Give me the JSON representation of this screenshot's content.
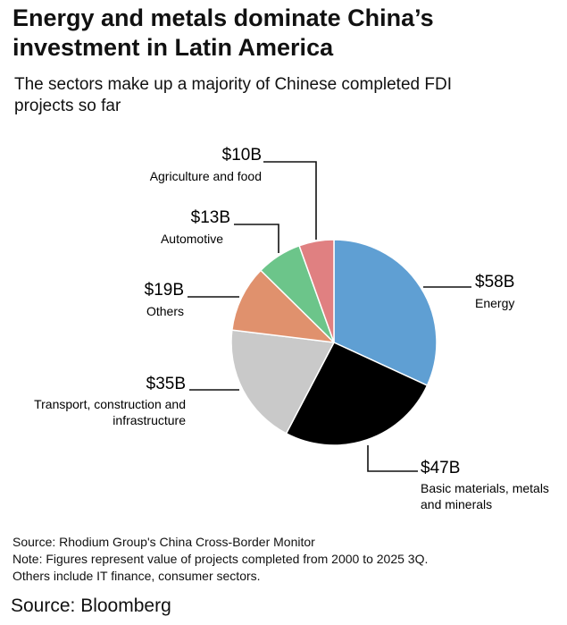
{
  "chart_data": {
    "type": "pie",
    "title": "Energy and metals dominate China’s investment in Latin America",
    "subtitle": "The sectors make up a majority of Chinese completed FDI projects so far",
    "unit": "$B",
    "start": "top",
    "direction": "clockwise",
    "slices": [
      {
        "label": "Energy",
        "value_label": "$58B",
        "value": 58,
        "color": "#5f9fd3"
      },
      {
        "label": "Basic materials, metals and minerals",
        "value_label": "$47B",
        "value": 47,
        "color": "#000000"
      },
      {
        "label": "Transport, construction and infrastructure",
        "value_label": "$35B",
        "value": 35,
        "color": "#c9c9c9"
      },
      {
        "label": "Others",
        "value_label": "$19B",
        "value": 19,
        "color": "#e0916d"
      },
      {
        "label": "Automotive",
        "value_label": "$13B",
        "value": 13,
        "color": "#6cc58a"
      },
      {
        "label": "Agriculture and food",
        "value_label": "$10B",
        "value": 10,
        "color": "#e08081"
      }
    ]
  },
  "notes": {
    "source": "Source: Rhodium Group's China Cross-Border Monitor",
    "note1": "Note: Figures represent value of projects completed from 2000 to 2025 3Q.",
    "note2": "Others include IT finance, consumer sectors."
  },
  "footer": {
    "source": "Source: Bloomberg"
  }
}
